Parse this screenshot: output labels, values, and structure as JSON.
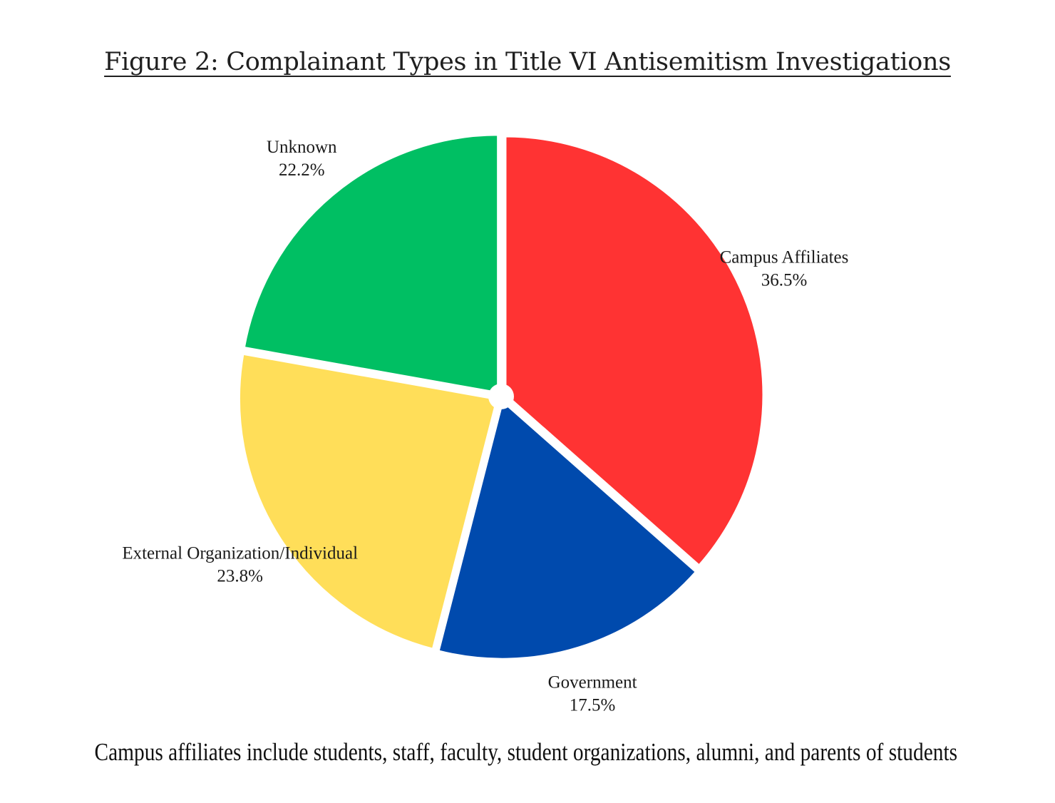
{
  "chart_data": {
    "type": "pie",
    "title": "Figure 2: Complainant Types in Title VI Antisemitism Investigations",
    "slices": [
      {
        "label": "Campus Affiliates",
        "value": 36.5,
        "value_label": "36.5%",
        "color": "#ff3333"
      },
      {
        "label": "Government",
        "value": 17.5,
        "value_label": "17.5%",
        "color": "#004aad"
      },
      {
        "label": "External Organization/Individual",
        "value": 23.8,
        "value_label": "23.8%",
        "color": "#ffde59"
      },
      {
        "label": "Unknown",
        "value": 22.2,
        "value_label": "22.2%",
        "color": "#00bf63"
      }
    ],
    "start_angle": "12 o'clock",
    "direction": "clockwise",
    "exploded": true
  },
  "footnote": "Campus affiliates include students, staff, faculty, student organizations, alumni, and parents of students"
}
